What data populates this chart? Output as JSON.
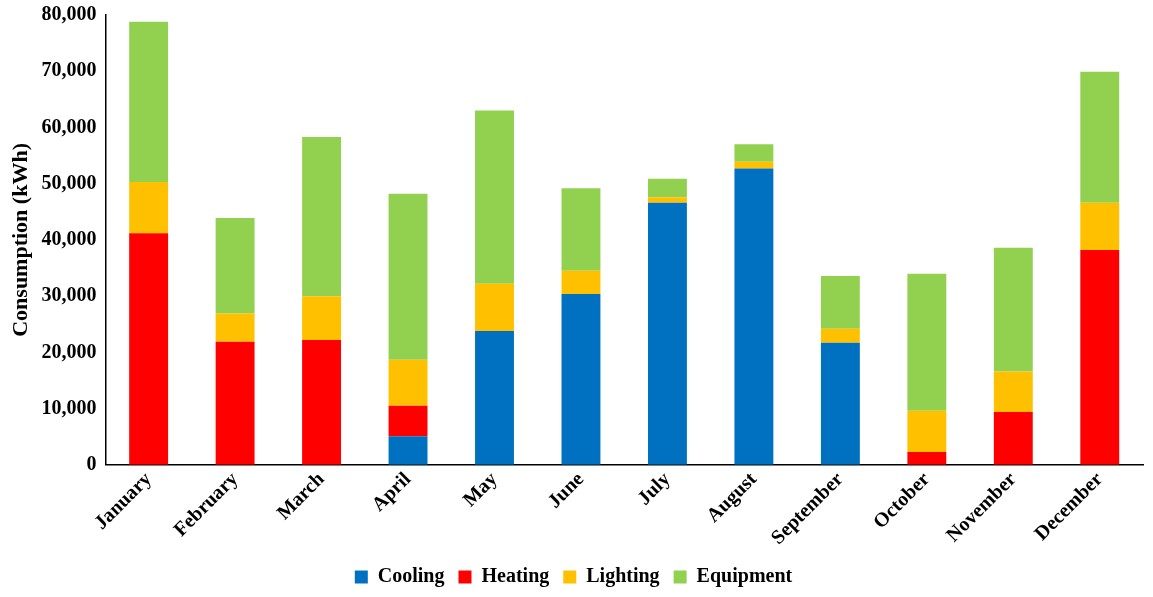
{
  "chart_data": {
    "type": "bar",
    "stacked": true,
    "ylabel": "Consumption (kWh)",
    "categories": [
      "January",
      "February",
      "March",
      "April",
      "May",
      "June",
      "July",
      "August",
      "September",
      "October",
      "November",
      "December"
    ],
    "series": [
      {
        "name": "Cooling",
        "color": "#0070c0",
        "values": [
          0,
          0,
          0,
          5100,
          23800,
          30400,
          46600,
          52700,
          21700,
          0,
          0,
          0
        ]
      },
      {
        "name": "Heating",
        "color": "#ff0000",
        "values": [
          41200,
          21900,
          22200,
          5400,
          0,
          0,
          0,
          0,
          0,
          2300,
          9400,
          38200
        ]
      },
      {
        "name": "Lighting",
        "color": "#ffc000",
        "values": [
          9100,
          5000,
          7800,
          8200,
          8400,
          4100,
          1000,
          1200,
          2500,
          7300,
          7200,
          8400
        ]
      },
      {
        "name": "Equipment",
        "color": "#92d050",
        "values": [
          28500,
          17000,
          28300,
          29500,
          30800,
          14700,
          3300,
          3100,
          9400,
          24400,
          22000,
          23300
        ]
      }
    ],
    "ylim": [
      0,
      80000
    ],
    "yticks": [
      0,
      {
        "value": 10000,
        "label": "10,000"
      },
      {
        "value": 20000,
        "label": "20,000"
      },
      {
        "value": 30000,
        "label": "30,000"
      },
      {
        "value": 40000,
        "label": "40,000"
      },
      {
        "value": 50000,
        "label": "50,000"
      },
      {
        "value": 60000,
        "label": "60,000"
      },
      {
        "value": 70000,
        "label": "70,000"
      },
      {
        "value": 80000,
        "label": "80,000"
      }
    ],
    "grid": false,
    "legend": "bottom"
  }
}
